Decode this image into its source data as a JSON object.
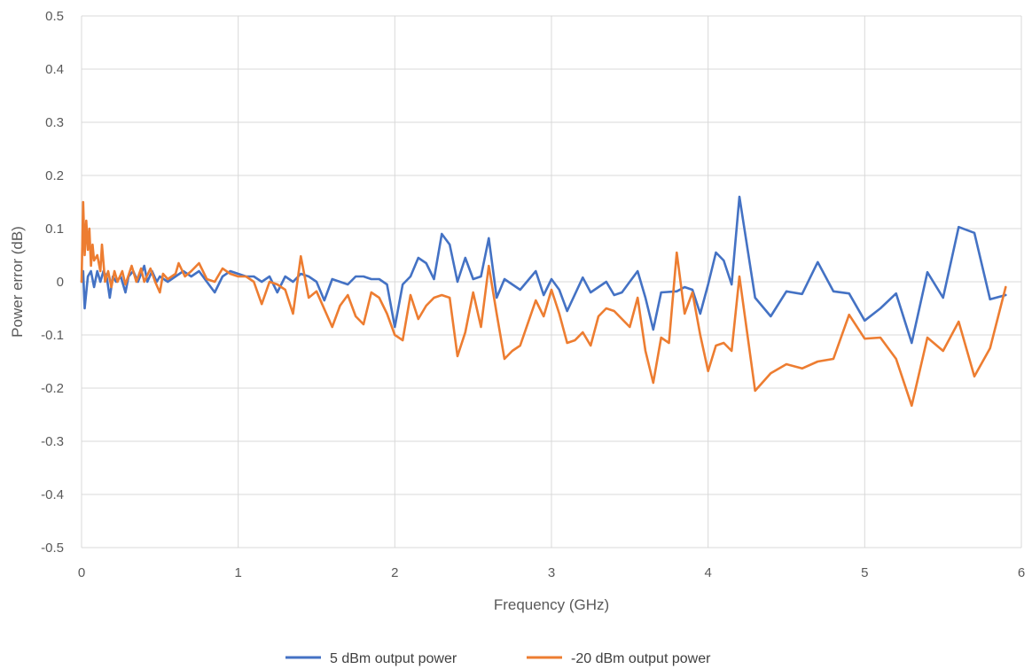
{
  "chart_data": {
    "type": "line",
    "xlabel": "Frequency (GHz)",
    "ylabel": "Power error (dB)",
    "xlim": [
      0,
      6
    ],
    "ylim": [
      -0.5,
      0.5
    ],
    "x_ticks": [
      0,
      1,
      2,
      3,
      4,
      5,
      6
    ],
    "y_ticks": [
      0.5,
      0.4,
      0.3,
      0.2,
      0.1,
      0,
      -0.1,
      -0.2,
      -0.3,
      -0.4,
      -0.5
    ],
    "x_tick_labels": [
      "0",
      "1",
      "2",
      "3",
      "4",
      "5",
      "6"
    ],
    "y_tick_labels": [
      "0.5",
      "0.4",
      "0.3",
      "0.2",
      "0.1",
      "0",
      "-0.1",
      "-0.2",
      "-0.3",
      "-0.4",
      "-0.5"
    ],
    "grid": true,
    "legend_position": "bottom",
    "series": [
      {
        "name": "5 dBm output power",
        "color": "#4472C4",
        "points": [
          [
            0.0,
            0.0
          ],
          [
            0.01,
            0.02
          ],
          [
            0.02,
            -0.05
          ],
          [
            0.04,
            0.01
          ],
          [
            0.06,
            0.02
          ],
          [
            0.08,
            -0.01
          ],
          [
            0.1,
            0.02
          ],
          [
            0.12,
            0.0
          ],
          [
            0.14,
            0.02
          ],
          [
            0.16,
            0.01
          ],
          [
            0.18,
            -0.03
          ],
          [
            0.2,
            0.01
          ],
          [
            0.22,
            0.0
          ],
          [
            0.25,
            0.01
          ],
          [
            0.28,
            -0.02
          ],
          [
            0.3,
            0.01
          ],
          [
            0.33,
            0.02
          ],
          [
            0.36,
            0.0
          ],
          [
            0.4,
            0.03
          ],
          [
            0.42,
            0.0
          ],
          [
            0.45,
            0.02
          ],
          [
            0.48,
            0.0
          ],
          [
            0.5,
            0.01
          ],
          [
            0.55,
            0.0
          ],
          [
            0.6,
            0.01
          ],
          [
            0.65,
            0.02
          ],
          [
            0.7,
            0.01
          ],
          [
            0.75,
            0.02
          ],
          [
            0.8,
            0.0
          ],
          [
            0.85,
            -0.02
          ],
          [
            0.9,
            0.01
          ],
          [
            0.95,
            0.02
          ],
          [
            1.0,
            0.015
          ],
          [
            1.05,
            0.01
          ],
          [
            1.1,
            0.01
          ],
          [
            1.15,
            0.0
          ],
          [
            1.2,
            0.01
          ],
          [
            1.25,
            -0.02
          ],
          [
            1.3,
            0.01
          ],
          [
            1.35,
            0.0
          ],
          [
            1.4,
            0.015
          ],
          [
            1.45,
            0.01
          ],
          [
            1.5,
            0.0
          ],
          [
            1.55,
            -0.035
          ],
          [
            1.6,
            0.005
          ],
          [
            1.65,
            0.0
          ],
          [
            1.7,
            -0.005
          ],
          [
            1.75,
            0.01
          ],
          [
            1.8,
            0.01
          ],
          [
            1.85,
            0.005
          ],
          [
            1.9,
            0.005
          ],
          [
            1.95,
            -0.005
          ],
          [
            2.0,
            -0.085
          ],
          [
            2.05,
            -0.005
          ],
          [
            2.1,
            0.01
          ],
          [
            2.15,
            0.045
          ],
          [
            2.2,
            0.035
          ],
          [
            2.25,
            0.005
          ],
          [
            2.3,
            0.09
          ],
          [
            2.35,
            0.07
          ],
          [
            2.4,
            0.0
          ],
          [
            2.45,
            0.045
          ],
          [
            2.5,
            0.005
          ],
          [
            2.55,
            0.01
          ],
          [
            2.6,
            0.082
          ],
          [
            2.65,
            -0.03
          ],
          [
            2.7,
            0.005
          ],
          [
            2.8,
            -0.015
          ],
          [
            2.9,
            0.02
          ],
          [
            2.95,
            -0.025
          ],
          [
            3.0,
            0.005
          ],
          [
            3.05,
            -0.015
          ],
          [
            3.1,
            -0.055
          ],
          [
            3.2,
            0.008
          ],
          [
            3.25,
            -0.02
          ],
          [
            3.35,
            0.0
          ],
          [
            3.4,
            -0.025
          ],
          [
            3.45,
            -0.02
          ],
          [
            3.5,
            0.0
          ],
          [
            3.55,
            0.02
          ],
          [
            3.6,
            -0.03
          ],
          [
            3.65,
            -0.09
          ],
          [
            3.7,
            -0.02
          ],
          [
            3.8,
            -0.018
          ],
          [
            3.85,
            -0.01
          ],
          [
            3.9,
            -0.015
          ],
          [
            3.95,
            -0.06
          ],
          [
            4.0,
            -0.005
          ],
          [
            4.05,
            0.055
          ],
          [
            4.1,
            0.04
          ],
          [
            4.15,
            -0.005
          ],
          [
            4.2,
            0.16
          ],
          [
            4.3,
            -0.03
          ],
          [
            4.4,
            -0.065
          ],
          [
            4.5,
            -0.018
          ],
          [
            4.6,
            -0.023
          ],
          [
            4.7,
            0.037
          ],
          [
            4.8,
            -0.018
          ],
          [
            4.9,
            -0.022
          ],
          [
            5.0,
            -0.073
          ],
          [
            5.1,
            -0.05
          ],
          [
            5.2,
            -0.022
          ],
          [
            5.3,
            -0.115
          ],
          [
            5.4,
            0.018
          ],
          [
            5.5,
            -0.03
          ],
          [
            5.6,
            0.103
          ],
          [
            5.7,
            0.092
          ],
          [
            5.8,
            -0.033
          ],
          [
            5.9,
            -0.025
          ]
        ]
      },
      {
        "name": "-20 dBm output power",
        "color": "#ED7D31",
        "points": [
          [
            0.0,
            0.0
          ],
          [
            0.01,
            0.15
          ],
          [
            0.02,
            0.05
          ],
          [
            0.03,
            0.115
          ],
          [
            0.04,
            0.06
          ],
          [
            0.05,
            0.1
          ],
          [
            0.06,
            0.03
          ],
          [
            0.07,
            0.07
          ],
          [
            0.08,
            0.04
          ],
          [
            0.1,
            0.05
          ],
          [
            0.12,
            0.02
          ],
          [
            0.13,
            0.07
          ],
          [
            0.15,
            0.0
          ],
          [
            0.17,
            0.02
          ],
          [
            0.19,
            -0.01
          ],
          [
            0.21,
            0.02
          ],
          [
            0.23,
            0.0
          ],
          [
            0.26,
            0.02
          ],
          [
            0.28,
            -0.005
          ],
          [
            0.32,
            0.03
          ],
          [
            0.35,
            0.0
          ],
          [
            0.38,
            0.025
          ],
          [
            0.4,
            0.0
          ],
          [
            0.44,
            0.025
          ],
          [
            0.47,
            0.0
          ],
          [
            0.5,
            -0.02
          ],
          [
            0.52,
            0.015
          ],
          [
            0.55,
            0.005
          ],
          [
            0.6,
            0.015
          ],
          [
            0.62,
            0.035
          ],
          [
            0.66,
            0.01
          ],
          [
            0.7,
            0.02
          ],
          [
            0.75,
            0.035
          ],
          [
            0.8,
            0.005
          ],
          [
            0.85,
            0.0
          ],
          [
            0.9,
            0.025
          ],
          [
            0.95,
            0.015
          ],
          [
            1.0,
            0.01
          ],
          [
            1.05,
            0.01
          ],
          [
            1.1,
            0.0
          ],
          [
            1.15,
            -0.042
          ],
          [
            1.2,
            0.0
          ],
          [
            1.25,
            -0.005
          ],
          [
            1.3,
            -0.015
          ],
          [
            1.35,
            -0.06
          ],
          [
            1.4,
            0.048
          ],
          [
            1.45,
            -0.03
          ],
          [
            1.5,
            -0.018
          ],
          [
            1.6,
            -0.085
          ],
          [
            1.65,
            -0.045
          ],
          [
            1.7,
            -0.025
          ],
          [
            1.75,
            -0.065
          ],
          [
            1.8,
            -0.08
          ],
          [
            1.85,
            -0.02
          ],
          [
            1.9,
            -0.03
          ],
          [
            1.95,
            -0.06
          ],
          [
            2.0,
            -0.1
          ],
          [
            2.05,
            -0.11
          ],
          [
            2.1,
            -0.025
          ],
          [
            2.15,
            -0.07
          ],
          [
            2.2,
            -0.045
          ],
          [
            2.25,
            -0.03
          ],
          [
            2.3,
            -0.025
          ],
          [
            2.35,
            -0.03
          ],
          [
            2.4,
            -0.14
          ],
          [
            2.45,
            -0.095
          ],
          [
            2.5,
            -0.02
          ],
          [
            2.55,
            -0.085
          ],
          [
            2.6,
            0.03
          ],
          [
            2.65,
            -0.06
          ],
          [
            2.7,
            -0.145
          ],
          [
            2.75,
            -0.13
          ],
          [
            2.8,
            -0.12
          ],
          [
            2.9,
            -0.035
          ],
          [
            2.95,
            -0.065
          ],
          [
            3.0,
            -0.015
          ],
          [
            3.05,
            -0.06
          ],
          [
            3.1,
            -0.115
          ],
          [
            3.15,
            -0.11
          ],
          [
            3.2,
            -0.095
          ],
          [
            3.25,
            -0.12
          ],
          [
            3.3,
            -0.065
          ],
          [
            3.35,
            -0.05
          ],
          [
            3.4,
            -0.055
          ],
          [
            3.5,
            -0.085
          ],
          [
            3.55,
            -0.03
          ],
          [
            3.6,
            -0.13
          ],
          [
            3.65,
            -0.19
          ],
          [
            3.7,
            -0.105
          ],
          [
            3.75,
            -0.115
          ],
          [
            3.8,
            0.055
          ],
          [
            3.85,
            -0.06
          ],
          [
            3.9,
            -0.02
          ],
          [
            3.95,
            -0.1
          ],
          [
            4.0,
            -0.168
          ],
          [
            4.05,
            -0.12
          ],
          [
            4.1,
            -0.115
          ],
          [
            4.15,
            -0.13
          ],
          [
            4.2,
            0.01
          ],
          [
            4.3,
            -0.205
          ],
          [
            4.4,
            -0.172
          ],
          [
            4.5,
            -0.155
          ],
          [
            4.6,
            -0.163
          ],
          [
            4.7,
            -0.15
          ],
          [
            4.8,
            -0.145
          ],
          [
            4.9,
            -0.062
          ],
          [
            5.0,
            -0.107
          ],
          [
            5.1,
            -0.105
          ],
          [
            5.2,
            -0.145
          ],
          [
            5.3,
            -0.233
          ],
          [
            5.4,
            -0.105
          ],
          [
            5.5,
            -0.13
          ],
          [
            5.6,
            -0.075
          ],
          [
            5.7,
            -0.178
          ],
          [
            5.8,
            -0.125
          ],
          [
            5.9,
            -0.01
          ]
        ]
      }
    ]
  }
}
